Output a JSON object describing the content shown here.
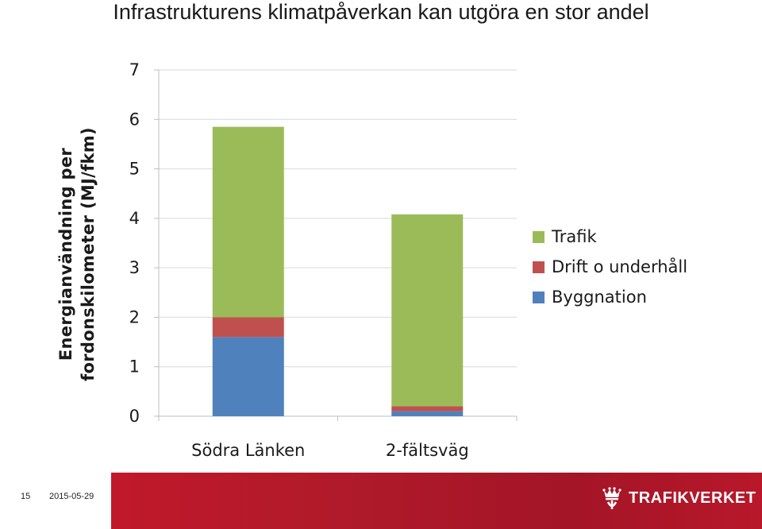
{
  "title": "Infrastrukturens klimatpåverkan kan utgöra en stor andel",
  "footer": {
    "slide_number": "15",
    "date": "2015-05-29",
    "brand": "TRAFIKVERKET"
  },
  "colors": {
    "trafik": "#9bbb59",
    "drift": "#c0504d",
    "byggnation": "#4f81bd",
    "footer_red": "#b01a2a"
  },
  "chart_data": {
    "type": "bar",
    "stacked": true,
    "categories": [
      "Södra Länken",
      "2-fältsväg"
    ],
    "series": [
      {
        "name": "Byggnation",
        "values": [
          1.6,
          0.1
        ]
      },
      {
        "name": "Drift o underhåll",
        "values": [
          0.4,
          0.1
        ]
      },
      {
        "name": "Trafik",
        "values": [
          3.85,
          3.88
        ]
      }
    ],
    "ylabel": [
      "Energianvändning per",
      "fordonskilometer (MJ/fkm)"
    ],
    "yticks": [
      0,
      1,
      2,
      3,
      4,
      5,
      6,
      7
    ],
    "ylim": [
      0,
      7
    ],
    "grid": true,
    "legend": [
      "Trafik",
      "Drift o underhåll",
      "Byggnation"
    ],
    "legend_position": "right"
  }
}
